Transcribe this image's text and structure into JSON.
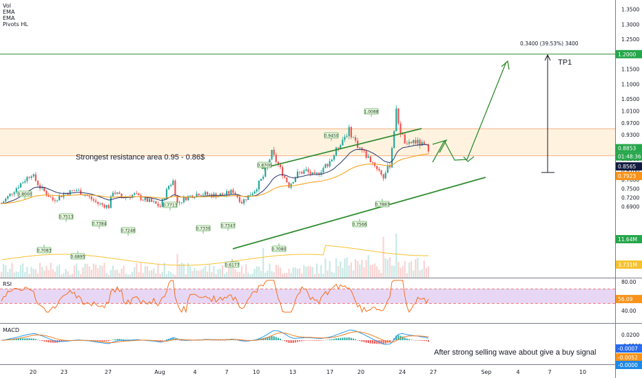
{
  "indicators": {
    "main": [
      "Vol",
      "EMA",
      "EMA",
      "Pivots HL"
    ],
    "rsi_label": "RSI",
    "macd_label": "MACD"
  },
  "annotations": {
    "resistance_text": "Strongest resistance area 0.95 - 0.86$",
    "tp1": "TP1",
    "measure": "0.3400 (39.53%) 3400",
    "buy_signal_text": "After strong selling wave about give a buy signal"
  },
  "price_axis": {
    "ticks": [
      "1.3500",
      "1.3000",
      "1.2500",
      "1.2000",
      "1.1500",
      "1.1000",
      "1.0500",
      "1.0100",
      "0.9700",
      "0.9300",
      "0.8900",
      "0.8500",
      "0.8100",
      "0.7800",
      "0.7500",
      "0.7200",
      "0.6900"
    ],
    "badges": [
      {
        "text": "1.2000",
        "color": "#26a64b"
      },
      {
        "text": "0.8853",
        "color": "#26a64b"
      },
      {
        "text": "01:48:36",
        "color": "#26a64b"
      },
      {
        "text": "0.8565",
        "color": "#131c40"
      },
      {
        "text": "0.7923",
        "color": "#f7931a"
      },
      {
        "text": "11.64M",
        "color": "#26a64b"
      },
      {
        "text": "3.731M",
        "color": "#f7c12f"
      }
    ]
  },
  "rsi_axis": {
    "ticks": [
      "80.00",
      "40.00"
    ],
    "badge": {
      "text": "56.09",
      "color": "#f7931a"
    }
  },
  "macd_axis": {
    "ticks": [
      "0.0200",
      "-0.0200"
    ],
    "badges": [
      {
        "text": "-0.0007",
        "color": "#2a6cf0"
      },
      {
        "text": "-0.0052",
        "color": "#f7931a"
      },
      {
        "text": "-0.0000",
        "color": "#1e88e5"
      }
    ]
  },
  "x_axis": {
    "labels": [
      "20",
      "23",
      "27",
      "Aug",
      "4",
      "7",
      "10",
      "13",
      "17",
      "20",
      "24",
      "27",
      "Sep",
      "4",
      "7",
      "10"
    ]
  },
  "pivots": [
    "0.8000",
    "0.7083",
    "0.7513",
    "0.6895",
    "0.7384",
    "0.7246",
    "0.7713",
    "0.7330",
    "0.7347",
    "0.6177",
    "0.8700",
    "0.7080",
    "0.9450",
    "1.0088",
    "0.7566",
    "0.7887"
  ],
  "colors": {
    "up": "#26a69a",
    "down": "#ef5350",
    "ema_fast": "#283469",
    "ema_slow": "#f7a21b",
    "trendline": "#2e8b2e",
    "resistance_fill": "#fff3e0",
    "rsi_line": "#f76d1b",
    "rsi_band": "#e7d7f5",
    "macd_line": "#2196f3",
    "signal_line": "#f77c1b"
  },
  "chart_data": {
    "type": "candlestick",
    "pair_scale": "log",
    "ylim": [
      0.66,
      1.38
    ],
    "resistance_zone": [
      0.86,
      0.95
    ],
    "target_level": 1.2,
    "current_price": 0.8853,
    "ema_values": [
      0.8565,
      0.7923
    ],
    "volume_values": [
      "11.64M",
      "3.731M"
    ],
    "rsi": {
      "value": 56.09,
      "range": [
        40,
        80
      ]
    },
    "macd": {
      "macd": -0.0007,
      "signal": -0.0052
    },
    "pivot_labels": [
      {
        "label": "0.8000",
        "type": "high"
      },
      {
        "label": "0.7083",
        "type": "low"
      },
      {
        "label": "0.7513",
        "type": "high"
      },
      {
        "label": "0.6895",
        "type": "low"
      },
      {
        "label": "0.7384",
        "type": "high"
      },
      {
        "label": "0.7246",
        "type": "high"
      },
      {
        "label": "0.7713",
        "type": "high"
      },
      {
        "label": "0.7330",
        "type": "high"
      },
      {
        "label": "0.7347",
        "type": "high"
      },
      {
        "label": "0.6177",
        "type": "low"
      },
      {
        "label": "0.8700",
        "type": "high"
      },
      {
        "label": "0.7080",
        "type": "low"
      },
      {
        "label": "0.9450",
        "type": "high"
      },
      {
        "label": "1.0088",
        "type": "high"
      },
      {
        "label": "0.7566",
        "type": "low"
      },
      {
        "label": "0.7887",
        "type": "low"
      }
    ]
  }
}
